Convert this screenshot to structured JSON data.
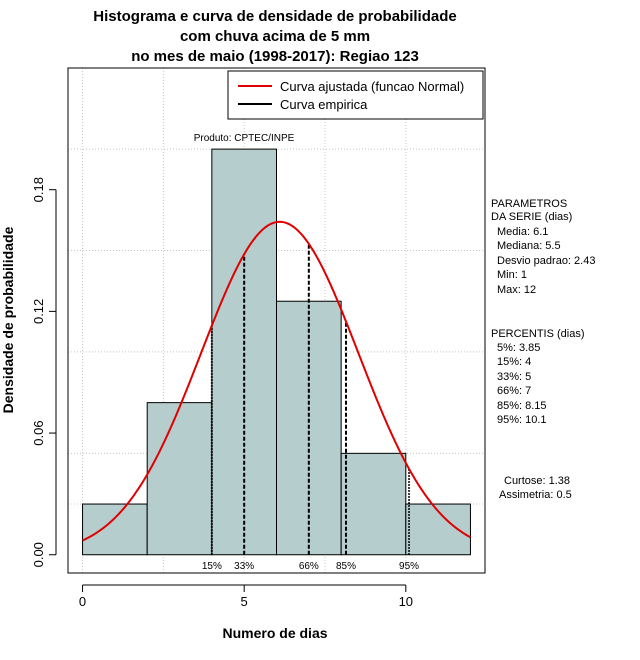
{
  "chart_data": {
    "type": "bar",
    "title_lines": [
      "Histograma e curva de densidade de probabilidade",
      "com chuva acima de 5 mm",
      "no mes de maio (1998-2017): Regiao 123"
    ],
    "xlabel": "Numero de dias",
    "ylabel": "Densidade de probabilidade",
    "xlim": [
      -0.45,
      12.45
    ],
    "ylim": [
      -0.009,
      0.24
    ],
    "x_ticks": [
      0,
      5,
      10
    ],
    "x_tick_labels": [
      "0",
      "5",
      "10"
    ],
    "y_ticks": [
      0.0,
      0.06,
      0.12,
      0.18
    ],
    "y_tick_labels": [
      "0.00",
      "0.06",
      "0.12",
      "0.18"
    ],
    "grid_x": [
      0,
      2.5,
      5,
      7.5,
      10
    ],
    "grid_y": [
      0.025,
      0.05,
      0.1,
      0.15,
      0.2
    ],
    "bins": [
      {
        "start": 0,
        "end": 2,
        "density": 0.025
      },
      {
        "start": 2,
        "end": 4,
        "density": 0.075
      },
      {
        "start": 4,
        "end": 6,
        "density": 0.2
      },
      {
        "start": 6,
        "end": 8,
        "density": 0.125
      },
      {
        "start": 8,
        "end": 10,
        "density": 0.05
      },
      {
        "start": 10,
        "end": 12,
        "density": 0.025
      }
    ],
    "bar_color": "#b5cdcd",
    "curve": {
      "name": "Curva ajustada (funcao Normal)",
      "mean": 6.1,
      "sd": 2.43,
      "color": "#e00000"
    },
    "empirical": {
      "name": "Curva empirica",
      "color": "#000000"
    },
    "percentile_lines": [
      {
        "label": "15%",
        "x": 4,
        "style": "dotted"
      },
      {
        "label": "33%",
        "x": 5,
        "style": "dashed"
      },
      {
        "label": "66%",
        "x": 7,
        "style": "dashed"
      },
      {
        "label": "85%",
        "x": 8.15,
        "style": "dashed"
      },
      {
        "label": "95%",
        "x": 10.1,
        "style": "dotted"
      }
    ],
    "product_label": "Produto: CPTEC/INPE",
    "legend_position": "top-right"
  },
  "side_panel": {
    "params_title_1": "PARAMETROS",
    "params_title_2": "DA SERIE (dias)",
    "params": [
      "Media: 6.1",
      "Mediana: 5.5",
      "Desvio padrao: 2.43",
      "Min: 1",
      "Max: 12"
    ],
    "percentis_title": "PERCENTIS (dias)",
    "percentis": [
      "5%: 3.85",
      "15%: 4",
      "33%: 5",
      "66%: 7",
      "85%: 8.15",
      "95%: 10.1"
    ],
    "curtose": "Curtose: 1.38",
    "assimetria": "Assimetria: 0.5"
  }
}
